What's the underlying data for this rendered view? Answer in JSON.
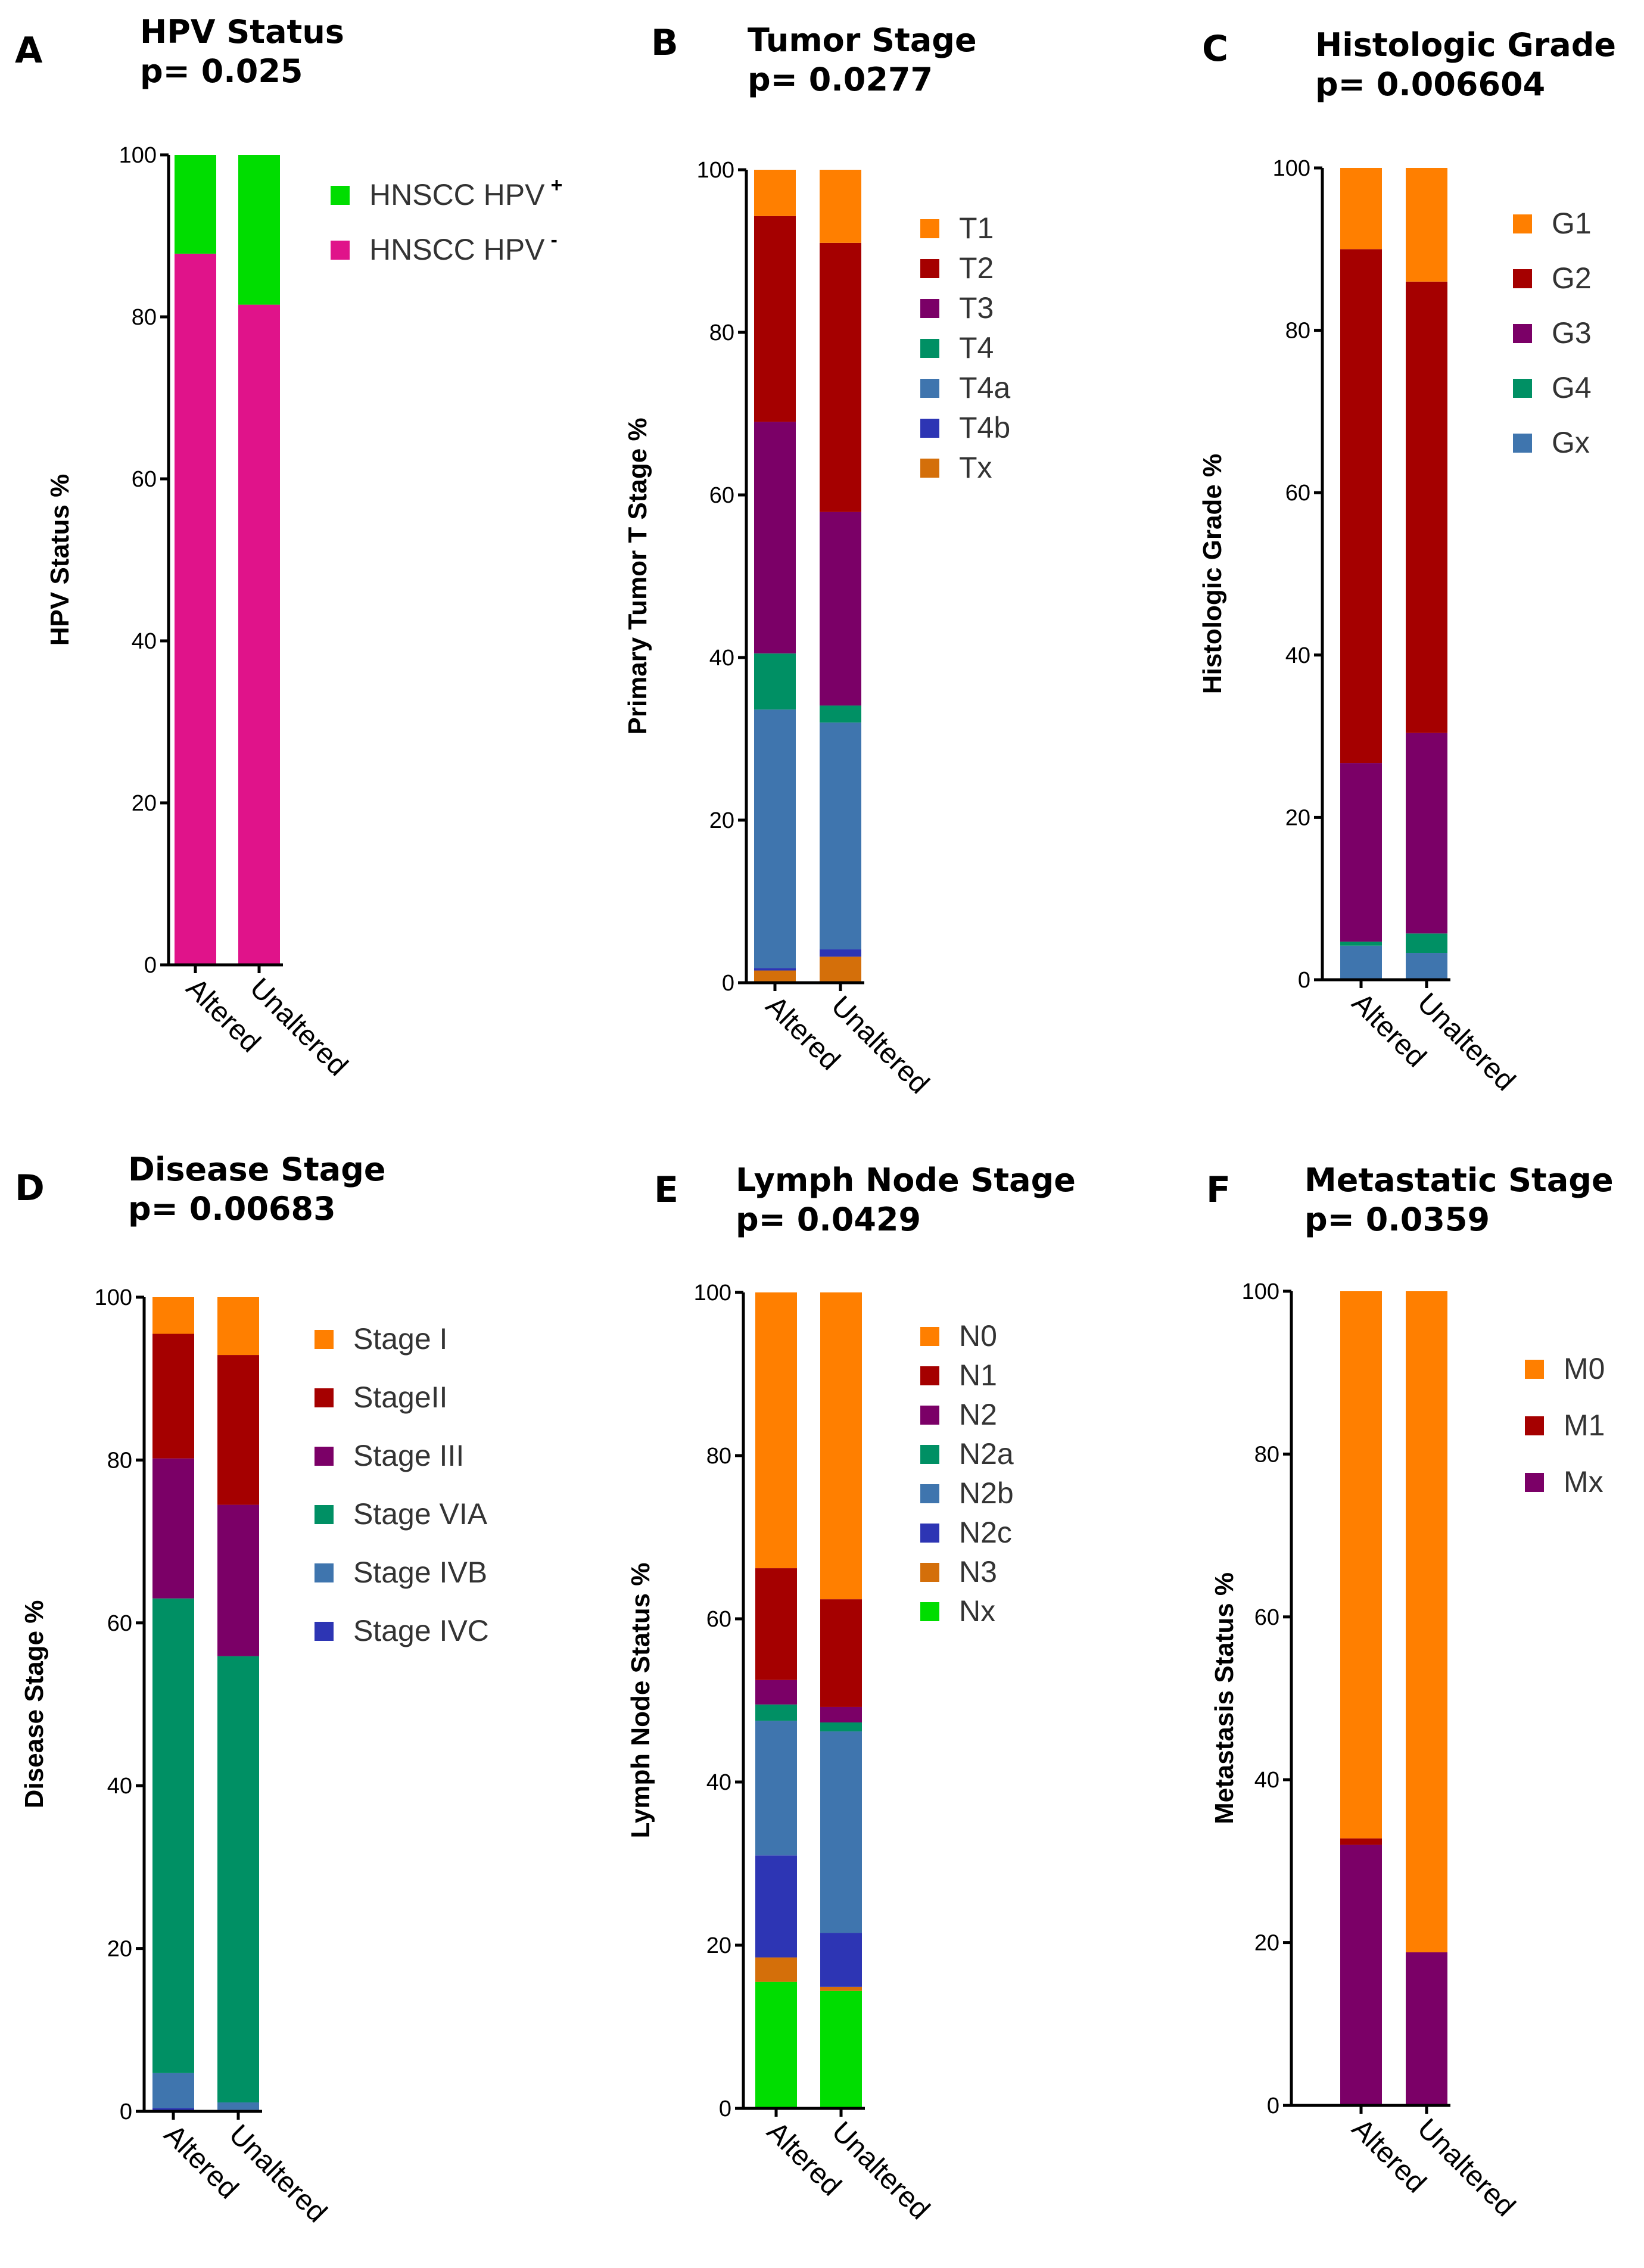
{
  "colors": {
    "orange": "#ff7f00",
    "darkred": "#a50000",
    "purple": "#7b0067",
    "teal": "#009064",
    "steel": "#3f75ae",
    "blue": "#2d35b4",
    "brown": "#d46f0a",
    "green": "#00dd00",
    "magenta": "#e0138a"
  },
  "chart_data": [
    {
      "id": "A",
      "letter": "A",
      "type": "bar",
      "stacked": true,
      "title": "HPV Status",
      "pvalue": "p= 0.025",
      "xlabel": "",
      "ylabel": "HPV Status %",
      "ylim": [
        0,
        100
      ],
      "yticks": [
        "0",
        "20",
        "40",
        "60",
        "80",
        "100"
      ],
      "categories": [
        "Altered",
        "Unaltered"
      ],
      "legend_position": "top-right",
      "series": [
        {
          "name": "HNSCC HPV",
          "sup": "-",
          "color": "#e0138a",
          "values": [
            87.8,
            81.5
          ]
        },
        {
          "name": "HNSCC HPV",
          "sup": "+",
          "color": "#00dd00",
          "values": [
            12.2,
            18.5
          ]
        }
      ]
    },
    {
      "id": "B",
      "letter": "B",
      "type": "bar",
      "stacked": true,
      "title": "Tumor Stage",
      "pvalue": "p= 0.0277",
      "xlabel": "",
      "ylabel": "Primary Tumor T Stage %",
      "ylim": [
        0,
        100
      ],
      "yticks": [
        "0",
        "20",
        "40",
        "60",
        "80",
        "100"
      ],
      "categories": [
        "Altered",
        "Unaltered"
      ],
      "legend_position": "top-right",
      "series": [
        {
          "name": "Tx",
          "color": "#d46f0a",
          "values": [
            1.5,
            3.2
          ]
        },
        {
          "name": "T4b",
          "color": "#2d35b4",
          "values": [
            0.3,
            0.9
          ]
        },
        {
          "name": "T4a",
          "color": "#3f75ae",
          "values": [
            31.8,
            27.9
          ]
        },
        {
          "name": "T4",
          "color": "#009064",
          "values": [
            6.9,
            2.1
          ]
        },
        {
          "name": "T3",
          "color": "#7b0067",
          "values": [
            28.5,
            23.8
          ]
        },
        {
          "name": "T2",
          "color": "#a50000",
          "values": [
            25.3,
            33.1
          ]
        },
        {
          "name": "T1",
          "color": "#ff7f00",
          "values": [
            5.7,
            9.0
          ]
        }
      ]
    },
    {
      "id": "C",
      "letter": "C",
      "type": "bar",
      "stacked": true,
      "title": "Histologic Grade",
      "pvalue": "p= 0.006604",
      "xlabel": "",
      "ylabel": "Histologic  Grade %",
      "ylim": [
        0,
        100
      ],
      "yticks": [
        "0",
        "20",
        "40",
        "60",
        "80",
        "100"
      ],
      "categories": [
        "Altered",
        "Unaltered"
      ],
      "legend_position": "top-right",
      "series": [
        {
          "name": "Gx",
          "color": "#3f75ae",
          "values": [
            4.2,
            3.3
          ]
        },
        {
          "name": "G4",
          "color": "#009064",
          "values": [
            0.5,
            2.4
          ]
        },
        {
          "name": "G3",
          "color": "#7b0067",
          "values": [
            22.0,
            24.7
          ]
        },
        {
          "name": "G2",
          "color": "#a50000",
          "values": [
            63.3,
            55.6
          ]
        },
        {
          "name": "G1",
          "color": "#ff7f00",
          "values": [
            10.0,
            14.0
          ]
        }
      ]
    },
    {
      "id": "D",
      "letter": "D",
      "type": "bar",
      "stacked": true,
      "title": "Disease Stage",
      "pvalue": "p= 0.00683",
      "xlabel": "",
      "ylabel": "Disease Stage %",
      "ylim": [
        0,
        100
      ],
      "yticks": [
        "0",
        "20",
        "40",
        "60",
        "80",
        "100"
      ],
      "categories": [
        "Altered",
        "Unaltered"
      ],
      "legend_position": "top-right",
      "series": [
        {
          "name": "Stage IVC",
          "color": "#2d35b4",
          "values": [
            0.4,
            0.2
          ]
        },
        {
          "name": "Stage IVB",
          "color": "#3f75ae",
          "values": [
            4.3,
            0.9
          ]
        },
        {
          "name": "Stage VIA",
          "color": "#009064",
          "values": [
            58.3,
            54.8
          ]
        },
        {
          "name": "Stage III",
          "color": "#7b0067",
          "values": [
            17.2,
            18.6
          ]
        },
        {
          "name": "StageII",
          "color": "#a50000",
          "values": [
            15.3,
            18.4
          ]
        },
        {
          "name": "Stage I",
          "color": "#ff7f00",
          "values": [
            4.5,
            7.1
          ]
        }
      ]
    },
    {
      "id": "E",
      "letter": "E",
      "type": "bar",
      "stacked": true,
      "title": "Lymph Node Stage",
      "pvalue": "p= 0.0429",
      "xlabel": "",
      "ylabel": "Lymph Node Status %",
      "ylim": [
        0,
        100
      ],
      "yticks": [
        "0",
        "20",
        "40",
        "60",
        "80",
        "100"
      ],
      "categories": [
        "Altered",
        "Unaltered"
      ],
      "legend_position": "top-right",
      "series": [
        {
          "name": "Nx",
          "color": "#00dd00",
          "values": [
            15.5,
            14.4
          ]
        },
        {
          "name": "N3",
          "color": "#d46f0a",
          "values": [
            3.0,
            0.5
          ]
        },
        {
          "name": "N2c",
          "color": "#2d35b4",
          "values": [
            12.5,
            6.6
          ]
        },
        {
          "name": "N2b",
          "color": "#3f75ae",
          "values": [
            16.5,
            24.7
          ]
        },
        {
          "name": "N2a",
          "color": "#009064",
          "values": [
            2.0,
            1.1
          ]
        },
        {
          "name": "N2",
          "color": "#7b0067",
          "values": [
            3.0,
            1.9
          ]
        },
        {
          "name": "N1",
          "color": "#a50000",
          "values": [
            13.7,
            13.2
          ]
        },
        {
          "name": "N0",
          "color": "#ff7f00",
          "values": [
            33.8,
            37.6
          ]
        }
      ]
    },
    {
      "id": "F",
      "letter": "F",
      "type": "bar",
      "stacked": true,
      "title": "Metastatic Stage",
      "pvalue": "p= 0.0359",
      "xlabel": "",
      "ylabel": "Metastasis Status %",
      "ylim": [
        0,
        100
      ],
      "yticks": [
        "0",
        "20",
        "40",
        "60",
        "80",
        "100"
      ],
      "categories": [
        "Altered",
        "Unaltered"
      ],
      "legend_position": "top-right",
      "series": [
        {
          "name": "Mx",
          "color": "#7b0067",
          "values": [
            32.0,
            18.8
          ]
        },
        {
          "name": "M1",
          "color": "#a50000",
          "values": [
            0.8,
            0.0
          ]
        },
        {
          "name": "M0",
          "color": "#ff7f00",
          "values": [
            67.2,
            81.2
          ]
        }
      ]
    }
  ]
}
